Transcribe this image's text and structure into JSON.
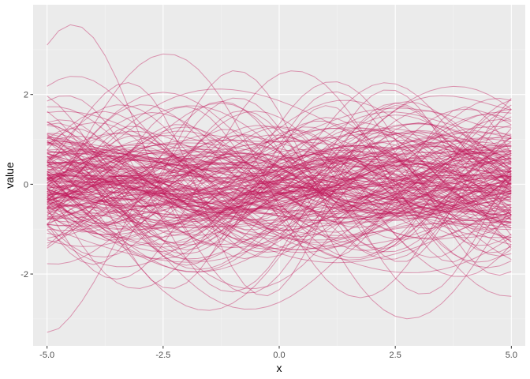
{
  "chart_data": {
    "type": "line",
    "description_of_series": "Approximately 200 overlapping smooth random curves sampled on x from -5 to 5",
    "num_series": 200,
    "xlabel": "x",
    "ylabel": "value",
    "xlim": [
      -5.3,
      5.3
    ],
    "ylim": [
      -3.6,
      4.0
    ],
    "x_ticks": [
      {
        "value": -5.0,
        "label": "-5.0"
      },
      {
        "value": -2.5,
        "label": "-2.5"
      },
      {
        "value": 0.0,
        "label": "0.0"
      },
      {
        "value": 2.5,
        "label": "2.5"
      },
      {
        "value": 5.0,
        "label": "5.0"
      }
    ],
    "y_ticks": [
      {
        "value": -2,
        "label": "-2"
      },
      {
        "value": 0,
        "label": "0"
      },
      {
        "value": 2,
        "label": "2"
      }
    ],
    "x_range": [
      -5,
      5
    ],
    "value_range_observed": [
      -3.3,
      3.6
    ],
    "grid": true,
    "legend": "none",
    "colors": {
      "line": "#c2185b",
      "panel_background": "#ebebeb",
      "grid_major": "#ffffff",
      "grid_minor": "#f5f5f5",
      "tick_text": "#4d4d4d"
    }
  }
}
